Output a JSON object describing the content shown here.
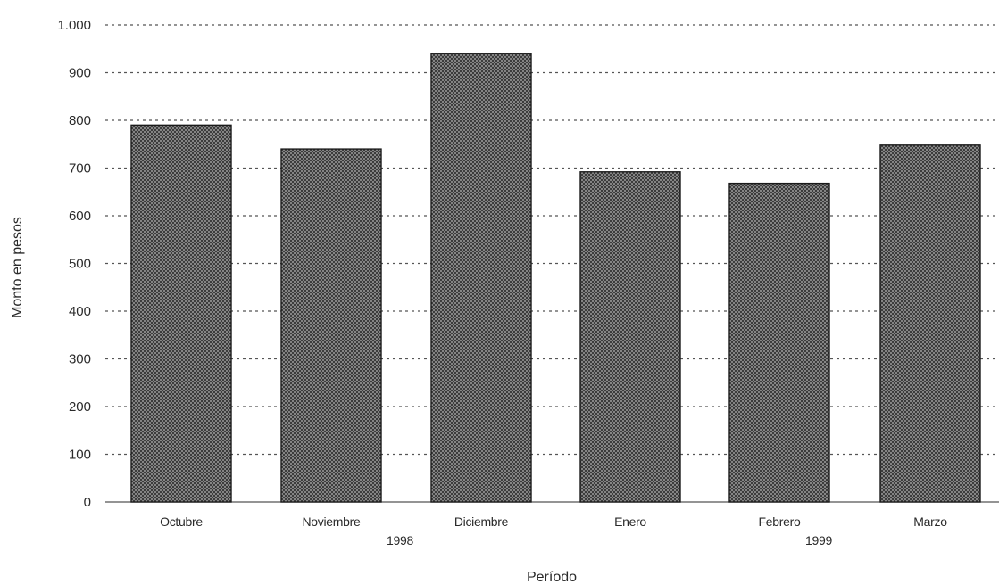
{
  "chart_data": {
    "type": "bar",
    "categories": [
      "Octubre",
      "Noviembre",
      "Diciembre",
      "Enero",
      "Febrero",
      "Marzo"
    ],
    "values": [
      790,
      740,
      940,
      692,
      668,
      748
    ],
    "year_groups": [
      {
        "label": "1998",
        "categories": [
          "Octubre",
          "Noviembre",
          "Diciembre"
        ]
      },
      {
        "label": "1999",
        "categories": [
          "Enero",
          "Febrero",
          "Marzo"
        ]
      }
    ],
    "xlabel": "Período",
    "ylabel": "Monto en pesos",
    "ylim": [
      0,
      1000
    ],
    "yticks": [
      0,
      100,
      200,
      300,
      400,
      500,
      600,
      700,
      800,
      900,
      1000
    ],
    "ytick_labels": [
      "0",
      "100",
      "200",
      "300",
      "400",
      "500",
      "600",
      "700",
      "800",
      "900",
      "1.000"
    ],
    "grid": true,
    "legend": "none",
    "bar_pattern": "crosshatch",
    "colors": {
      "bar_fill": "#7a7a7a",
      "bar_stroke": "#1a1a1a",
      "grid": "#555555"
    }
  }
}
